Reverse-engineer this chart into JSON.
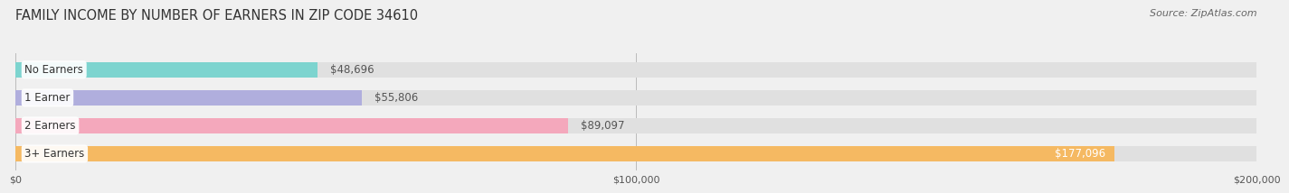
{
  "title": "FAMILY INCOME BY NUMBER OF EARNERS IN ZIP CODE 34610",
  "source": "Source: ZipAtlas.com",
  "categories": [
    "No Earners",
    "1 Earner",
    "2 Earners",
    "3+ Earners"
  ],
  "values": [
    48696,
    55806,
    89097,
    177096
  ],
  "bar_colors": [
    "#7dd4cf",
    "#b0aedd",
    "#f4a8bc",
    "#f5b962"
  ],
  "label_colors": [
    "#333333",
    "#333333",
    "#333333",
    "#ffffff"
  ],
  "value_labels": [
    "$48,696",
    "$55,806",
    "$89,097",
    "$177,096"
  ],
  "value_inside": [
    false,
    false,
    false,
    true
  ],
  "xlim": [
    0,
    200000
  ],
  "xticks": [
    0,
    100000,
    200000
  ],
  "xtick_labels": [
    "$0",
    "$100,000",
    "$200,000"
  ],
  "bar_height": 0.55,
  "background_color": "#f0f0f0",
  "bar_bg_color": "#e0e0e0",
  "title_fontsize": 10.5,
  "source_fontsize": 8,
  "label_fontsize": 8.5,
  "value_fontsize": 8.5
}
